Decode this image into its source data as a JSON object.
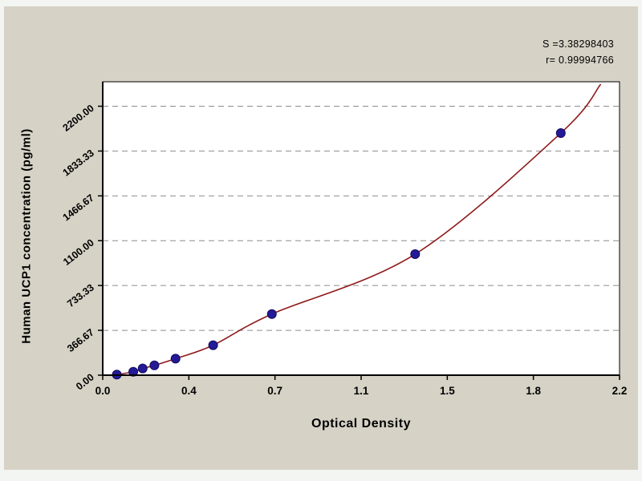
{
  "chart_data": {
    "type": "scatter",
    "title": "",
    "xlabel": "Optical Density",
    "ylabel": "Human UCP1 concentration (pg/ml)",
    "annotations": {
      "s": "S =3.38298403",
      "r": "r= 0.99994766"
    },
    "xlim": [
      0,
      2.2
    ],
    "ylim": [
      0,
      2400
    ],
    "grid": "horizontal-dashed",
    "legend": "none",
    "x_ticks": [
      {
        "v": 0,
        "label": "0.0"
      },
      {
        "v": 0.3667,
        "label": "0.4"
      },
      {
        "v": 0.7333,
        "label": "0.7"
      },
      {
        "v": 1.1,
        "label": "1.1"
      },
      {
        "v": 1.4667,
        "label": "1.5"
      },
      {
        "v": 1.8333,
        "label": "1.8"
      },
      {
        "v": 2.2,
        "label": "2.2"
      }
    ],
    "y_ticks": [
      {
        "v": 0,
        "label": "0.00"
      },
      {
        "v": 366.67,
        "label": "366.67"
      },
      {
        "v": 733.33,
        "label": "733.33"
      },
      {
        "v": 1100,
        "label": "1100.00"
      },
      {
        "v": 1466.67,
        "label": "1466.67"
      },
      {
        "v": 1833.33,
        "label": "1833.33"
      },
      {
        "v": 2200,
        "label": "2200.00"
      }
    ],
    "series": [
      {
        "name": "standard-points",
        "type": "scatter",
        "marker_color": "#241a97",
        "marker_edge": "#120b5e",
        "points": [
          [
            0.06,
            5
          ],
          [
            0.13,
            28
          ],
          [
            0.17,
            55
          ],
          [
            0.22,
            80
          ],
          [
            0.31,
            135
          ],
          [
            0.47,
            245
          ],
          [
            0.72,
            500
          ],
          [
            1.33,
            990
          ],
          [
            1.95,
            1980
          ]
        ]
      },
      {
        "name": "fit-curve",
        "type": "line",
        "color": "#8f1a1a",
        "points": [
          [
            0.04,
            0
          ],
          [
            0.06,
            5
          ],
          [
            0.13,
            28
          ],
          [
            0.17,
            55
          ],
          [
            0.22,
            80
          ],
          [
            0.31,
            135
          ],
          [
            0.47,
            245
          ],
          [
            0.72,
            500
          ],
          [
            1.33,
            990
          ],
          [
            1.95,
            1980
          ],
          [
            2.12,
            2380
          ]
        ]
      }
    ],
    "colors": {
      "panel_bg": "#d6d2c6",
      "plot_bg": "#ffffff",
      "grid": "#8c8c8c",
      "axis": "#000000",
      "text": "#000000"
    }
  }
}
